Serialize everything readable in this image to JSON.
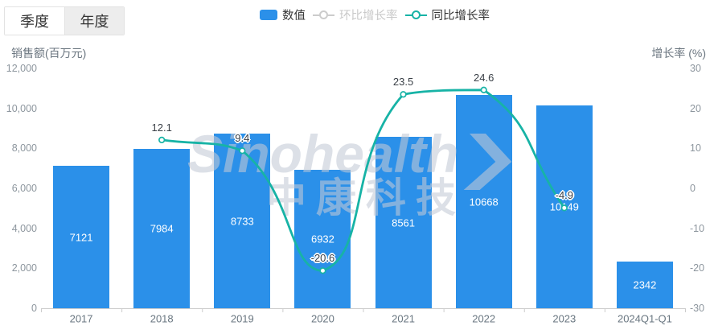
{
  "tabs": [
    {
      "label": "季度",
      "active": false
    },
    {
      "label": "年度",
      "active": true
    }
  ],
  "legend": [
    {
      "label": "数值",
      "type": "bar",
      "color": "#2b90e9",
      "disabled": false
    },
    {
      "label": "环比增长率",
      "type": "line",
      "color": "#cccccc",
      "disabled": true
    },
    {
      "label": "同比增长率",
      "type": "line",
      "color": "#17b3a6",
      "disabled": false
    }
  ],
  "watermark": {
    "text_en": "Sinohealth",
    "text_cn": "中康科技"
  },
  "chart_data": {
    "type": "combo",
    "categories": [
      "2017",
      "2018",
      "2019",
      "2020",
      "2021",
      "2022",
      "2023",
      "2024Q1-Q1"
    ],
    "series": [
      {
        "name": "数值",
        "type": "bar",
        "color": "#2b90e9",
        "values": [
          7121,
          7984,
          8733,
          6932,
          8561,
          10668,
          10149,
          2342
        ]
      },
      {
        "name": "环比增长率",
        "type": "line",
        "color": "#cccccc",
        "disabled": true,
        "values": []
      },
      {
        "name": "同比增长率",
        "type": "line",
        "color": "#17b3a6",
        "values": [
          null,
          12.1,
          9.4,
          -20.6,
          23.5,
          24.6,
          -4.9,
          null
        ]
      }
    ],
    "y_axis_left": {
      "title": "销售额(百万元)",
      "min": 0,
      "max": 12000,
      "tick_labels": [
        "0",
        "2,000",
        "4,000",
        "6,000",
        "8,000",
        "10,000",
        "12,000"
      ]
    },
    "y_axis_right": {
      "title": "增长率 (%)",
      "min": -30,
      "max": 30,
      "tick_labels": [
        "-30",
        "-20",
        "-10",
        "0",
        "10",
        "20",
        "30"
      ]
    },
    "grid": false,
    "legend_position": "top"
  }
}
